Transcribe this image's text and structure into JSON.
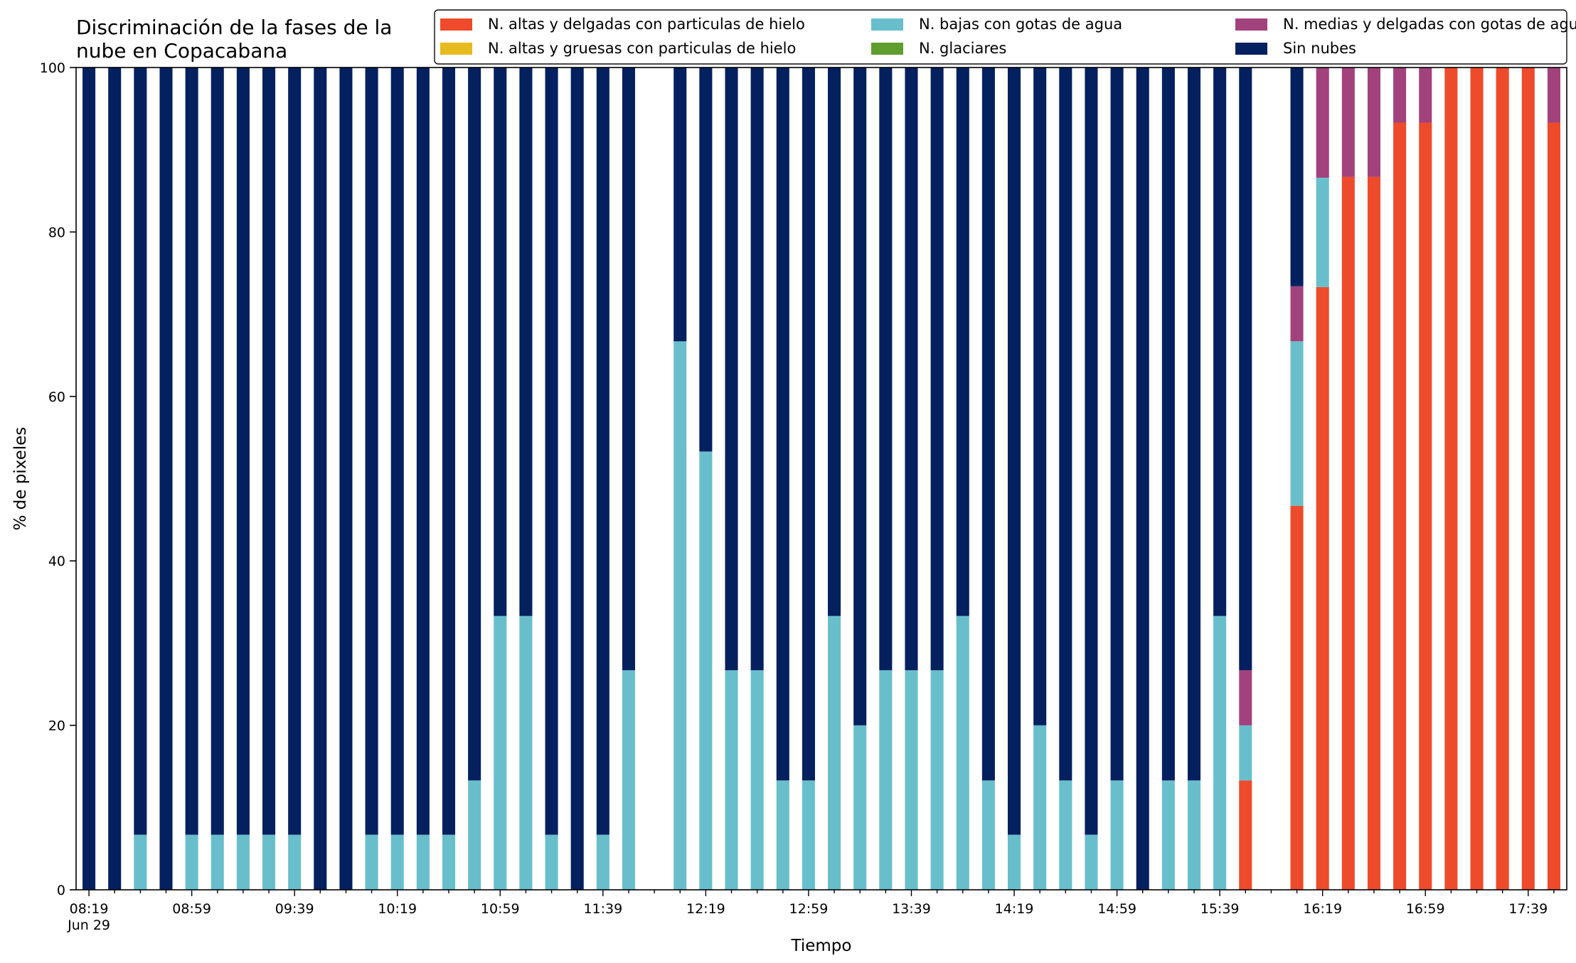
{
  "chart_data": {
    "type": "bar",
    "stacked": true,
    "title_lines": [
      "Discriminación de la fases de la",
      "nube en Copacabana"
    ],
    "xlabel": "Tiempo",
    "ylabel": "% de pixeles",
    "ylim": [
      0,
      100
    ],
    "yticks": [
      0,
      20,
      40,
      60,
      80,
      100
    ],
    "grid": false,
    "legend_position": "top-right",
    "x_start": "08:19",
    "x_step_minutes": 10,
    "x_count": 58,
    "xtick_labels": [
      {
        "index": 0,
        "label": "08:19",
        "sublabel": "Jun 29"
      },
      {
        "index": 4,
        "label": "08:59"
      },
      {
        "index": 8,
        "label": "09:39"
      },
      {
        "index": 12,
        "label": "10:19"
      },
      {
        "index": 16,
        "label": "10:59"
      },
      {
        "index": 20,
        "label": "11:39"
      },
      {
        "index": 24,
        "label": "12:19"
      },
      {
        "index": 28,
        "label": "12:59"
      },
      {
        "index": 32,
        "label": "13:39"
      },
      {
        "index": 36,
        "label": "14:19"
      },
      {
        "index": 40,
        "label": "14:59"
      },
      {
        "index": 44,
        "label": "15:39"
      },
      {
        "index": 48,
        "label": "16:19"
      },
      {
        "index": 52,
        "label": "16:59"
      },
      {
        "index": 56,
        "label": "17:39"
      }
    ],
    "series": [
      {
        "name": "N. altas y delgadas con particulas de hielo",
        "color": "#ed4b2b"
      },
      {
        "name": "N. altas y gruesas con particulas de hielo",
        "color": "#e6bb1f"
      },
      {
        "name": "N. bajas con gotas de agua",
        "color": "#68bfcb"
      },
      {
        "name": "N. glaciares",
        "color": "#5f9d2e"
      },
      {
        "name": "N. medias y delgadas con gotas de agua",
        "color": "#a2427c"
      },
      {
        "name": "Sin nubes",
        "color": "#04205f"
      }
    ],
    "bars": [
      {
        "x": "08:19",
        "values": [
          0,
          0,
          0,
          0,
          0,
          100
        ]
      },
      {
        "x": "08:29",
        "values": [
          0,
          0,
          0,
          0,
          0,
          100
        ]
      },
      {
        "x": "08:39",
        "values": [
          0,
          0,
          6.7,
          0,
          0,
          93.3
        ]
      },
      {
        "x": "08:49",
        "values": [
          0,
          0,
          0,
          0,
          0,
          100
        ]
      },
      {
        "x": "08:59",
        "values": [
          0,
          0,
          6.7,
          0,
          0,
          93.3
        ]
      },
      {
        "x": "09:09",
        "values": [
          0,
          0,
          6.7,
          0,
          0,
          93.3
        ]
      },
      {
        "x": "09:19",
        "values": [
          0,
          0,
          6.7,
          0,
          0,
          93.3
        ]
      },
      {
        "x": "09:29",
        "values": [
          0,
          0,
          6.7,
          0,
          0,
          93.3
        ]
      },
      {
        "x": "09:39",
        "values": [
          0,
          0,
          6.7,
          0,
          0,
          93.3
        ]
      },
      {
        "x": "09:49",
        "values": [
          0,
          0,
          0,
          0,
          0,
          100
        ]
      },
      {
        "x": "09:59",
        "values": [
          0,
          0,
          0,
          0,
          0,
          100
        ]
      },
      {
        "x": "10:09",
        "values": [
          0,
          0,
          6.7,
          0,
          0,
          93.3
        ]
      },
      {
        "x": "10:19",
        "values": [
          0,
          0,
          6.7,
          0,
          0,
          93.3
        ]
      },
      {
        "x": "10:29",
        "values": [
          0,
          0,
          6.7,
          0,
          0,
          93.3
        ]
      },
      {
        "x": "10:39",
        "values": [
          0,
          0,
          6.7,
          0,
          0,
          93.3
        ]
      },
      {
        "x": "10:49",
        "values": [
          0,
          0,
          13.3,
          0,
          0,
          86.7
        ]
      },
      {
        "x": "10:59",
        "values": [
          0,
          0,
          33.3,
          0,
          0,
          66.7
        ]
      },
      {
        "x": "11:09",
        "values": [
          0,
          0,
          33.3,
          0,
          0,
          66.7
        ]
      },
      {
        "x": "11:19",
        "values": [
          0,
          0,
          6.7,
          0,
          0,
          93.3
        ]
      },
      {
        "x": "11:29",
        "values": [
          0,
          0,
          0,
          0,
          0,
          100
        ]
      },
      {
        "x": "11:39",
        "values": [
          0,
          0,
          6.7,
          0,
          0,
          93.3
        ]
      },
      {
        "x": "11:49",
        "values": [
          0,
          0,
          26.7,
          0,
          0,
          73.3
        ]
      },
      {
        "x": "11:59",
        "values": null
      },
      {
        "x": "12:09",
        "values": [
          0,
          0,
          66.7,
          0,
          0,
          33.3
        ]
      },
      {
        "x": "12:19",
        "values": [
          0,
          0,
          53.3,
          0,
          0,
          46.7
        ]
      },
      {
        "x": "12:29",
        "values": [
          0,
          0,
          26.7,
          0,
          0,
          73.3
        ]
      },
      {
        "x": "12:39",
        "values": [
          0,
          0,
          26.7,
          0,
          0,
          73.3
        ]
      },
      {
        "x": "12:49",
        "values": [
          0,
          0,
          13.3,
          0,
          0,
          86.7
        ]
      },
      {
        "x": "12:59",
        "values": [
          0,
          0,
          13.3,
          0,
          0,
          86.7
        ]
      },
      {
        "x": "13:09",
        "values": [
          0,
          0,
          33.3,
          0,
          0,
          66.7
        ]
      },
      {
        "x": "13:19",
        "values": [
          0,
          0,
          20,
          0,
          0,
          80
        ]
      },
      {
        "x": "13:29",
        "values": [
          0,
          0,
          26.7,
          0,
          0,
          73.3
        ]
      },
      {
        "x": "13:39",
        "values": [
          0,
          0,
          26.7,
          0,
          0,
          73.3
        ]
      },
      {
        "x": "13:49",
        "values": [
          0,
          0,
          26.7,
          0,
          0,
          73.3
        ]
      },
      {
        "x": "13:59",
        "values": [
          0,
          0,
          33.3,
          0,
          0,
          66.7
        ]
      },
      {
        "x": "14:09",
        "values": [
          0,
          0,
          13.3,
          0,
          0,
          86.7
        ]
      },
      {
        "x": "14:19",
        "values": [
          0,
          0,
          6.7,
          0,
          0,
          93.3
        ]
      },
      {
        "x": "14:29",
        "values": [
          0,
          0,
          20,
          0,
          0,
          80
        ]
      },
      {
        "x": "14:39",
        "values": [
          0,
          0,
          13.3,
          0,
          0,
          86.7
        ]
      },
      {
        "x": "14:49",
        "values": [
          0,
          0,
          6.7,
          0,
          0,
          93.3
        ]
      },
      {
        "x": "14:59",
        "values": [
          0,
          0,
          13.3,
          0,
          0,
          86.7
        ]
      },
      {
        "x": "15:09",
        "values": [
          0,
          0,
          0,
          0,
          0,
          100
        ]
      },
      {
        "x": "15:19",
        "values": [
          0,
          0,
          13.3,
          0,
          0,
          86.7
        ]
      },
      {
        "x": "15:29",
        "values": [
          0,
          0,
          13.3,
          0,
          0,
          86.7
        ]
      },
      {
        "x": "15:39",
        "values": [
          0,
          0,
          33.3,
          0,
          0,
          66.7
        ]
      },
      {
        "x": "15:49",
        "values": [
          13.3,
          0,
          6.7,
          0,
          6.7,
          73.3
        ]
      },
      {
        "x": "15:59",
        "values": null
      },
      {
        "x": "16:09",
        "values": [
          46.7,
          0,
          20,
          0,
          6.7,
          26.6
        ]
      },
      {
        "x": "16:19",
        "values": [
          73.3,
          0,
          13.3,
          0,
          13.4,
          0
        ]
      },
      {
        "x": "16:29",
        "values": [
          86.7,
          0,
          0,
          0,
          13.3,
          0
        ]
      },
      {
        "x": "16:39",
        "values": [
          86.7,
          0,
          0,
          0,
          13.3,
          0
        ]
      },
      {
        "x": "16:49",
        "values": [
          93.3,
          0,
          0,
          0,
          6.7,
          0
        ]
      },
      {
        "x": "16:59",
        "values": [
          93.3,
          0,
          0,
          0,
          6.7,
          0
        ]
      },
      {
        "x": "17:09",
        "values": [
          100,
          0,
          0,
          0,
          0,
          0
        ]
      },
      {
        "x": "17:19",
        "values": [
          100,
          0,
          0,
          0,
          0,
          0
        ]
      },
      {
        "x": "17:29",
        "values": [
          100,
          0,
          0,
          0,
          0,
          0
        ]
      },
      {
        "x": "17:39",
        "values": [
          100,
          0,
          0,
          0,
          0,
          0
        ]
      },
      {
        "x": "17:49",
        "values": [
          93.3,
          0,
          0,
          0,
          6.7,
          0
        ]
      }
    ]
  }
}
